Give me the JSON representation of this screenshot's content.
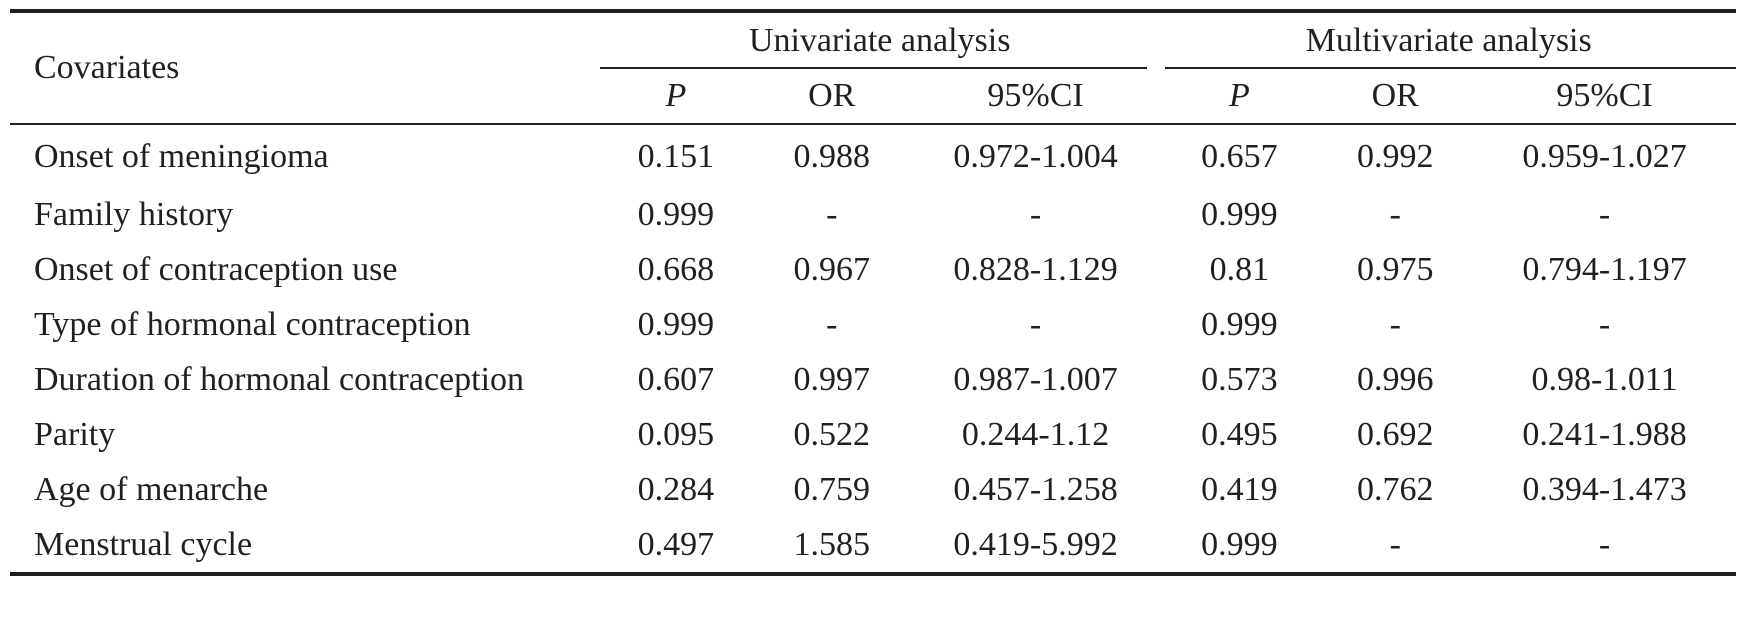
{
  "table": {
    "header": {
      "covariates": "Covariates",
      "univariate": "Univariate analysis",
      "multivariate": "Multivariate analysis",
      "columns": [
        "P",
        "OR",
        "95%CI",
        "P",
        "OR",
        "95%CI"
      ]
    },
    "rows": [
      {
        "label": "Onset of meningioma",
        "cells": [
          "0.151",
          "0.988",
          "0.972-1.004",
          "0.657",
          "0.992",
          "0.959-1.027"
        ]
      },
      {
        "label": "Family history",
        "cells": [
          "0.999",
          "-",
          "-",
          "0.999",
          "-",
          "-"
        ]
      },
      {
        "label": "Onset of contraception use",
        "cells": [
          "0.668",
          "0.967",
          "0.828-1.129",
          "0.81",
          "0.975",
          "0.794-1.197"
        ]
      },
      {
        "label": "Type of hormonal contraception",
        "cells": [
          "0.999",
          "-",
          "-",
          "0.999",
          "-",
          "-"
        ]
      },
      {
        "label": "Duration of hormonal contraception",
        "cells": [
          "0.607",
          "0.997",
          "0.987-1.007",
          "0.573",
          "0.996",
          "0.98-1.011"
        ]
      },
      {
        "label": "Parity",
        "cells": [
          "0.095",
          "0.522",
          "0.244-1.12",
          "0.495",
          "0.692",
          "0.241-1.988"
        ]
      },
      {
        "label": "Age of menarche",
        "cells": [
          "0.284",
          "0.759",
          "0.457-1.258",
          "0.419",
          "0.762",
          "0.394-1.473"
        ]
      },
      {
        "label": "Menstrual cycle",
        "cells": [
          "0.497",
          "1.585",
          "0.419-5.992",
          "0.999",
          "-",
          "-"
        ]
      }
    ]
  }
}
